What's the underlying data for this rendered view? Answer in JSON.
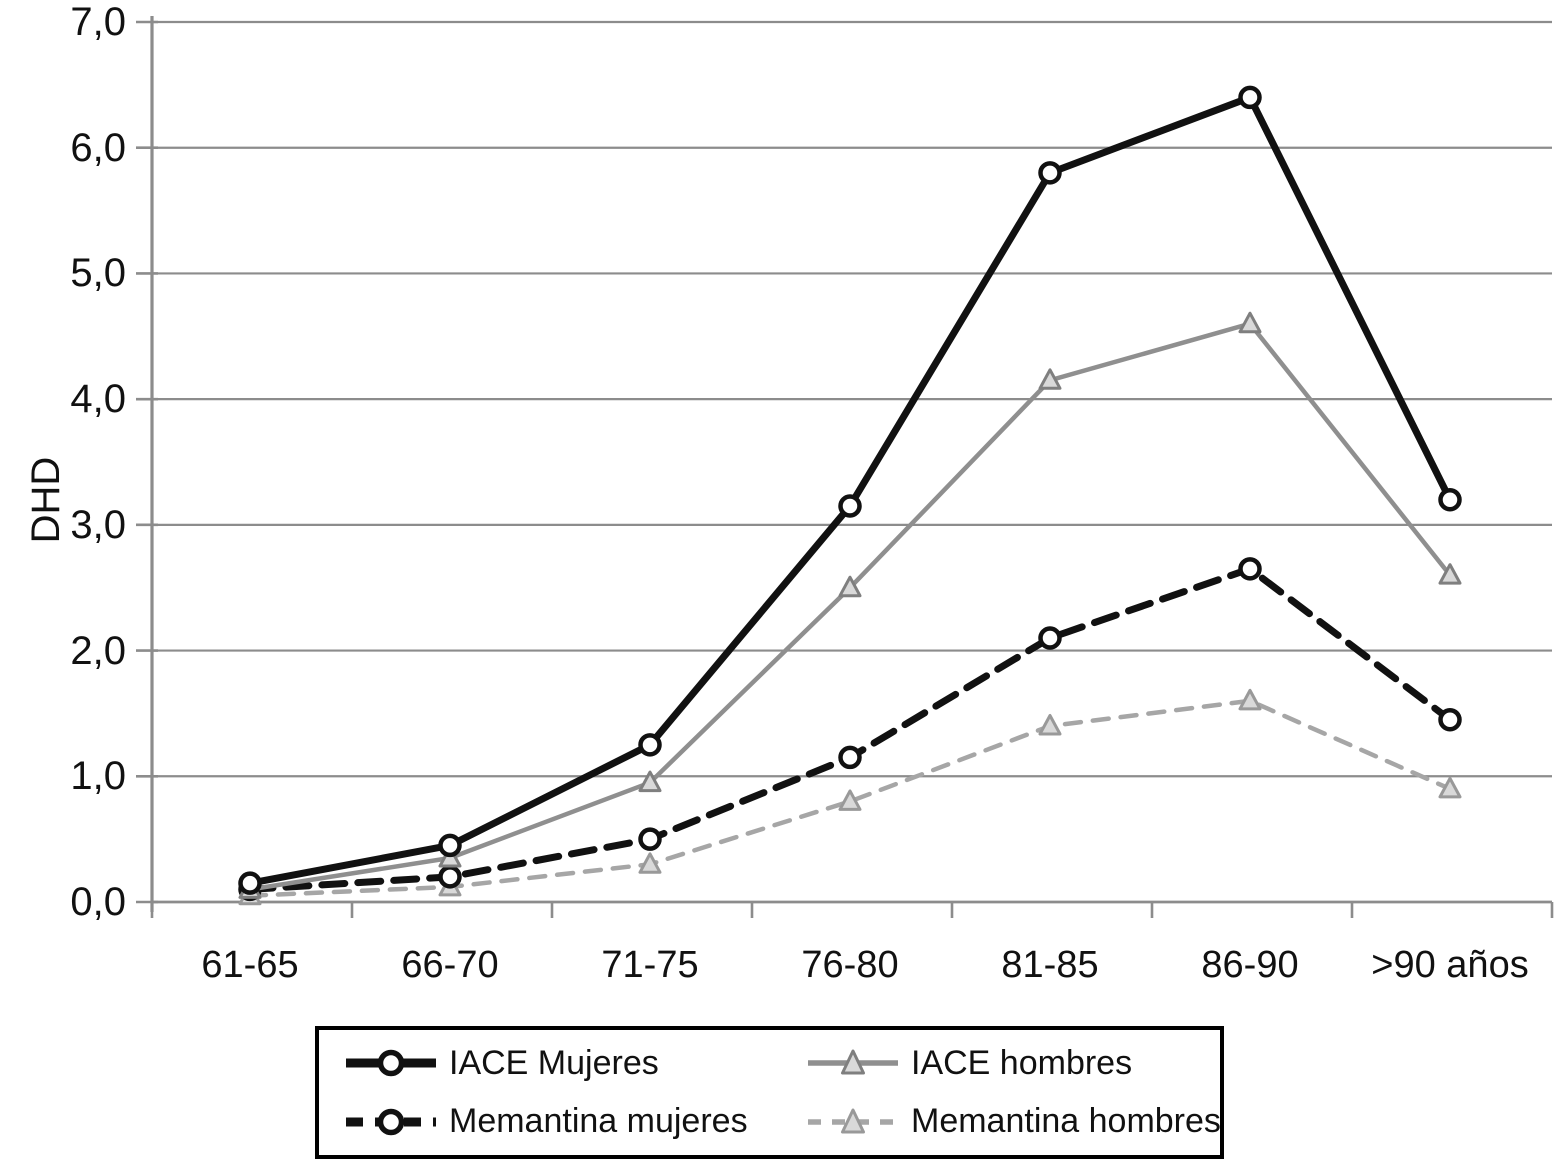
{
  "chart_data": {
    "type": "line",
    "title": "",
    "ylabel": "DHD",
    "xlabel": "",
    "categories": [
      "61-65",
      "66-70",
      "71-75",
      "76-80",
      "81-85",
      "86-90",
      ">90 años"
    ],
    "ylim": [
      0,
      7
    ],
    "ytick_step": 1.0,
    "ytick_labels": [
      "7,0",
      "6,0",
      "5,0",
      "4,0",
      "3,0",
      "2,0",
      "1,0",
      "0,0"
    ],
    "grid": "horizontal",
    "legend_position": "bottom-boxed",
    "colors": {
      "black_series": "#111111",
      "gray_series": "#8f8f8f",
      "light_gray_series": "#a6a6a6",
      "gridline": "#8c8c8c",
      "legend_border": "#000000",
      "background": "#ffffff"
    },
    "series": [
      {
        "name": "IACE Mujeres",
        "marker": "circle",
        "line": "solid",
        "color": "#111111",
        "marker_fill": "#ffffff",
        "values": [
          0.15,
          0.45,
          1.25,
          3.15,
          5.8,
          6.4,
          3.2
        ]
      },
      {
        "name": "IACE hombres",
        "marker": "triangle",
        "line": "solid",
        "color": "#8f8f8f",
        "marker_fill": "#d9d9d9",
        "values": [
          0.1,
          0.35,
          0.95,
          2.5,
          4.15,
          4.6,
          2.6
        ]
      },
      {
        "name": "Memantina mujeres",
        "marker": "circle",
        "line": "dashed",
        "color": "#111111",
        "marker_fill": "#ffffff",
        "values": [
          0.1,
          0.2,
          0.5,
          1.15,
          2.1,
          2.65,
          1.45
        ]
      },
      {
        "name": "Memantina hombres",
        "marker": "triangle",
        "line": "dashed",
        "color": "#a6a6a6",
        "marker_fill": "#d9d9d9",
        "values": [
          0.05,
          0.12,
          0.3,
          0.8,
          1.4,
          1.6,
          0.9
        ]
      }
    ]
  }
}
